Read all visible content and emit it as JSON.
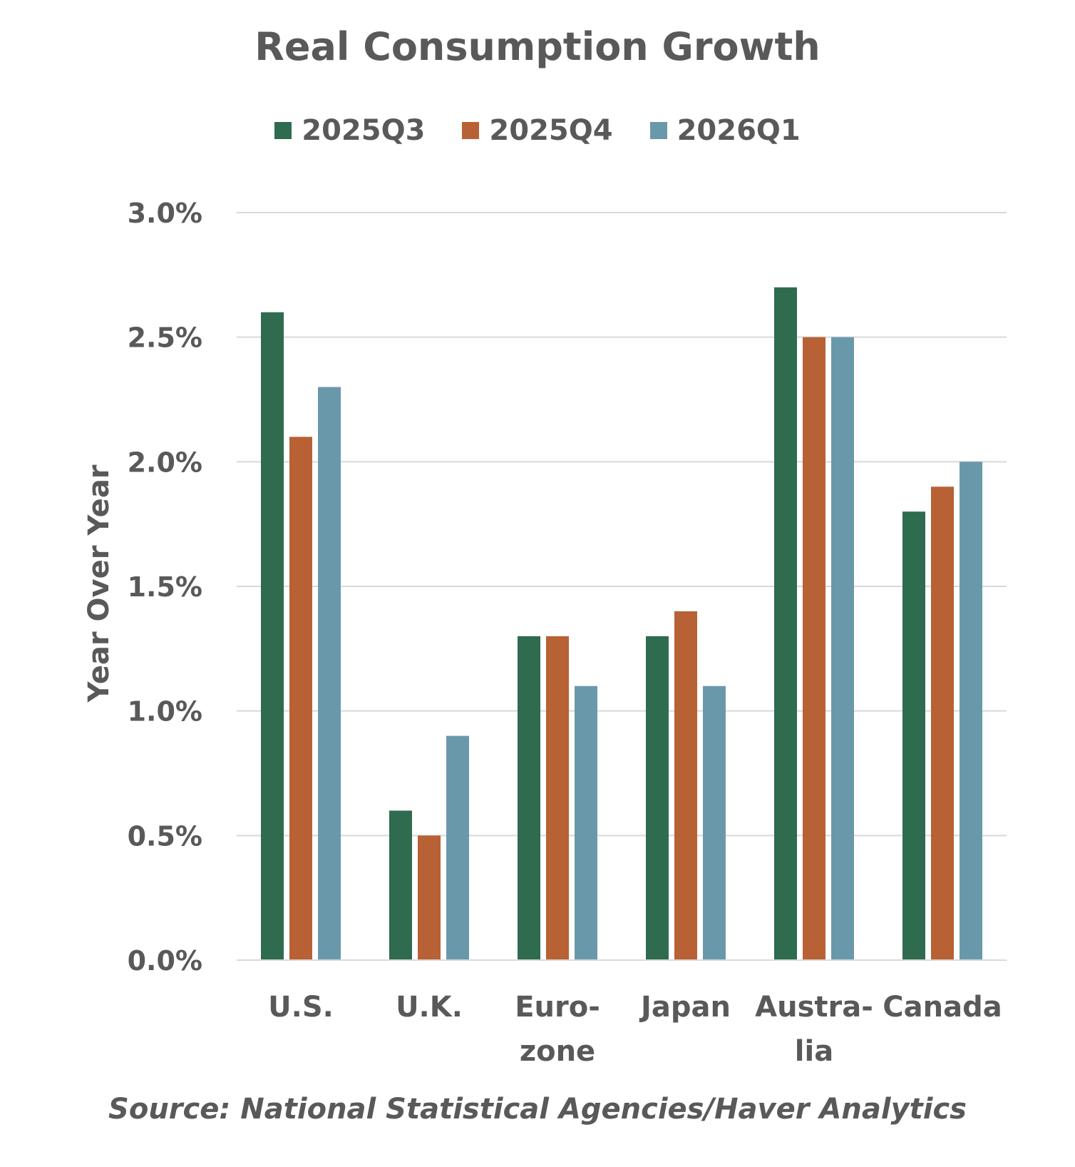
{
  "chart_data": {
    "type": "bar",
    "title": "Real Consumption Growth",
    "ylabel": "Year Over Year",
    "xlabel": "",
    "categories": [
      [
        "U.S."
      ],
      [
        "U.K."
      ],
      [
        "Euro-",
        "zone"
      ],
      [
        "Japan"
      ],
      [
        "Austra-",
        "lia"
      ],
      [
        "Canada"
      ]
    ],
    "series": [
      {
        "name": "2025Q3",
        "color": "#2e6b4f",
        "values": [
          2.6,
          0.6,
          1.3,
          1.3,
          2.7,
          1.8
        ]
      },
      {
        "name": "2025Q4",
        "color": "#b86135",
        "values": [
          2.1,
          0.5,
          1.3,
          1.4,
          2.5,
          1.9
        ]
      },
      {
        "name": "2026Q1",
        "color": "#6a98ab",
        "values": [
          2.3,
          0.9,
          1.1,
          1.1,
          2.5,
          2.0
        ]
      }
    ],
    "ylim": [
      0,
      3.0
    ],
    "yticks": [
      "0.0%",
      "0.5%",
      "1.0%",
      "1.5%",
      "2.0%",
      "2.5%",
      "3.0%"
    ],
    "grid": true,
    "legend_position": "top",
    "source": "Source: National Statistical Agencies/Haver Analytics"
  }
}
